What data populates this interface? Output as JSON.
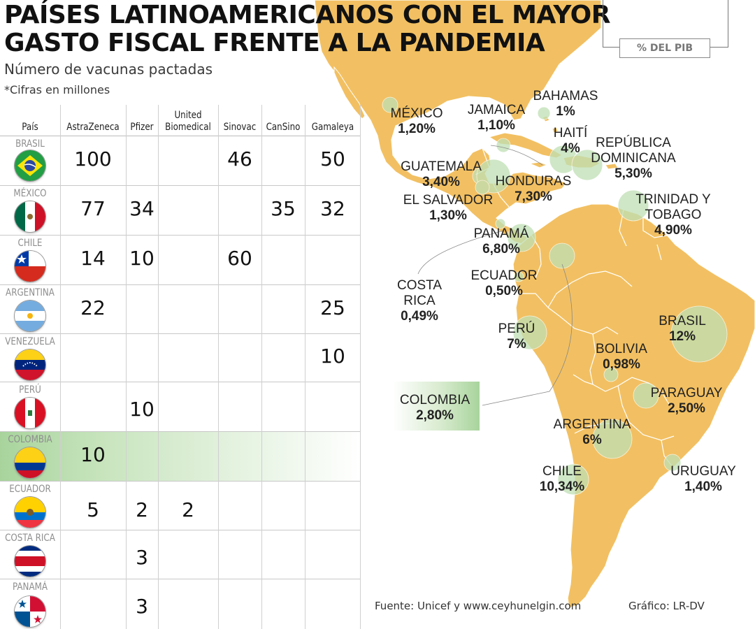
{
  "title": {
    "line1": "PAÍSES LATINOAMERICANOS CON EL MAYOR",
    "line2": "GASTO FISCAL FRENTE A LA PANDEMIA"
  },
  "subtitle": "Número de vacunas pactadas",
  "note": "*Cifras en millones",
  "legend_label": "% DEL PIB",
  "table": {
    "headers": {
      "country": "País",
      "astrazeneca": "AstraZeneca",
      "pfizer": "Pfizer",
      "ub1": "United",
      "ub2": "Biomedical",
      "sinovac": "Sinovac",
      "cansino": "CanSino",
      "gamaleya": "Gamaleya"
    },
    "rows": [
      {
        "name": "BRASIL",
        "flag": "brazil-flag",
        "astrazeneca": "100",
        "pfizer": "",
        "ub": "",
        "sinovac": "46",
        "cansino": "",
        "gamaleya": "50"
      },
      {
        "name": "MÉXICO",
        "flag": "mexico-flag",
        "astrazeneca": "77",
        "pfizer": "34",
        "ub": "",
        "sinovac": "",
        "cansino": "35",
        "gamaleya": "32"
      },
      {
        "name": "CHILE",
        "flag": "chile-flag",
        "astrazeneca": "14",
        "pfizer": "10",
        "ub": "",
        "sinovac": "60",
        "cansino": "",
        "gamaleya": ""
      },
      {
        "name": "ARGENTINA",
        "flag": "argentina-flag",
        "astrazeneca": "22",
        "pfizer": "",
        "ub": "",
        "sinovac": "",
        "cansino": "",
        "gamaleya": "25"
      },
      {
        "name": "VENEZUELA",
        "flag": "venezuela-flag",
        "astrazeneca": "",
        "pfizer": "",
        "ub": "",
        "sinovac": "",
        "cansino": "",
        "gamaleya": "10"
      },
      {
        "name": "PERÚ",
        "flag": "peru-flag",
        "astrazeneca": "",
        "pfizer": "10",
        "ub": "",
        "sinovac": "",
        "cansino": "",
        "gamaleya": ""
      },
      {
        "name": "COLOMBIA",
        "flag": "colombia-flag",
        "astrazeneca": "10",
        "pfizer": "",
        "ub": "",
        "sinovac": "",
        "cansino": "",
        "gamaleya": "",
        "highlight": true
      },
      {
        "name": "ECUADOR",
        "flag": "ecuador-flag",
        "astrazeneca": "5",
        "pfizer": "2",
        "ub": "2",
        "sinovac": "",
        "cansino": "",
        "gamaleya": ""
      },
      {
        "name": "COSTA RICA",
        "flag": "costa-rica-flag",
        "astrazeneca": "",
        "pfizer": "3",
        "ub": "",
        "sinovac": "",
        "cansino": "",
        "gamaleya": ""
      },
      {
        "name": "PANAMÁ",
        "flag": "panama-flag",
        "astrazeneca": "",
        "pfizer": "3",
        "ub": "",
        "sinovac": "",
        "cansino": "",
        "gamaleya": ""
      }
    ]
  },
  "map_labels": [
    {
      "id": "mexico",
      "name": "MÉXICO",
      "value": "1,20%"
    },
    {
      "id": "jamaica",
      "name": "JAMAICA",
      "value": "1,10%"
    },
    {
      "id": "bahamas",
      "name": "BAHAMAS",
      "value": "1%"
    },
    {
      "id": "haiti",
      "name": "HAITÍ",
      "value": "4%"
    },
    {
      "id": "republica-dominicana",
      "name1": "REPÚBLICA",
      "name2": "DOMINICANA",
      "value": "5,30%"
    },
    {
      "id": "guatemala",
      "name": "GUATEMALA",
      "value": "3,40%"
    },
    {
      "id": "honduras",
      "name": "HONDURAS",
      "value": "7,30%"
    },
    {
      "id": "el-salvador",
      "name": "EL SALVADOR",
      "value": "1,30%"
    },
    {
      "id": "trinidad-tobago",
      "name1": "TRINIDAD Y",
      "name2": "TOBAGO",
      "value": "4,90%"
    },
    {
      "id": "panama",
      "name": "PANAMÁ",
      "value": "6,80%"
    },
    {
      "id": "ecuador",
      "name": "ECUADOR",
      "value": "0,50%"
    },
    {
      "id": "costa-rica",
      "name1": "COSTA",
      "name2": "RICA",
      "value": "0,49%"
    },
    {
      "id": "peru",
      "name": "PERÚ",
      "value": "7%"
    },
    {
      "id": "brasil",
      "name": "BRASIL",
      "value": "12%"
    },
    {
      "id": "bolivia",
      "name": "BOLIVIA",
      "value": "0,98%"
    },
    {
      "id": "colombia",
      "name": "COLOMBIA",
      "value": "2,80%"
    },
    {
      "id": "paraguay",
      "name": "PARAGUAY",
      "value": "2,50%"
    },
    {
      "id": "argentina",
      "name": "ARGENTINA",
      "value": "6%"
    },
    {
      "id": "chile",
      "name": "CHILE",
      "value": "10,34%"
    },
    {
      "id": "uruguay",
      "name": "URUGUAY",
      "value": "1,40%"
    }
  ],
  "colors": {
    "land": "#f2c062",
    "border": "#ffffff",
    "bubble": "#bfe0b4",
    "highlight": "#a8d49c",
    "sea": "#ffffff"
  },
  "footer": {
    "source": "Fuente: Unicef y www.ceyhunelgin.com",
    "credit": "Gráfico: LR-DV"
  }
}
